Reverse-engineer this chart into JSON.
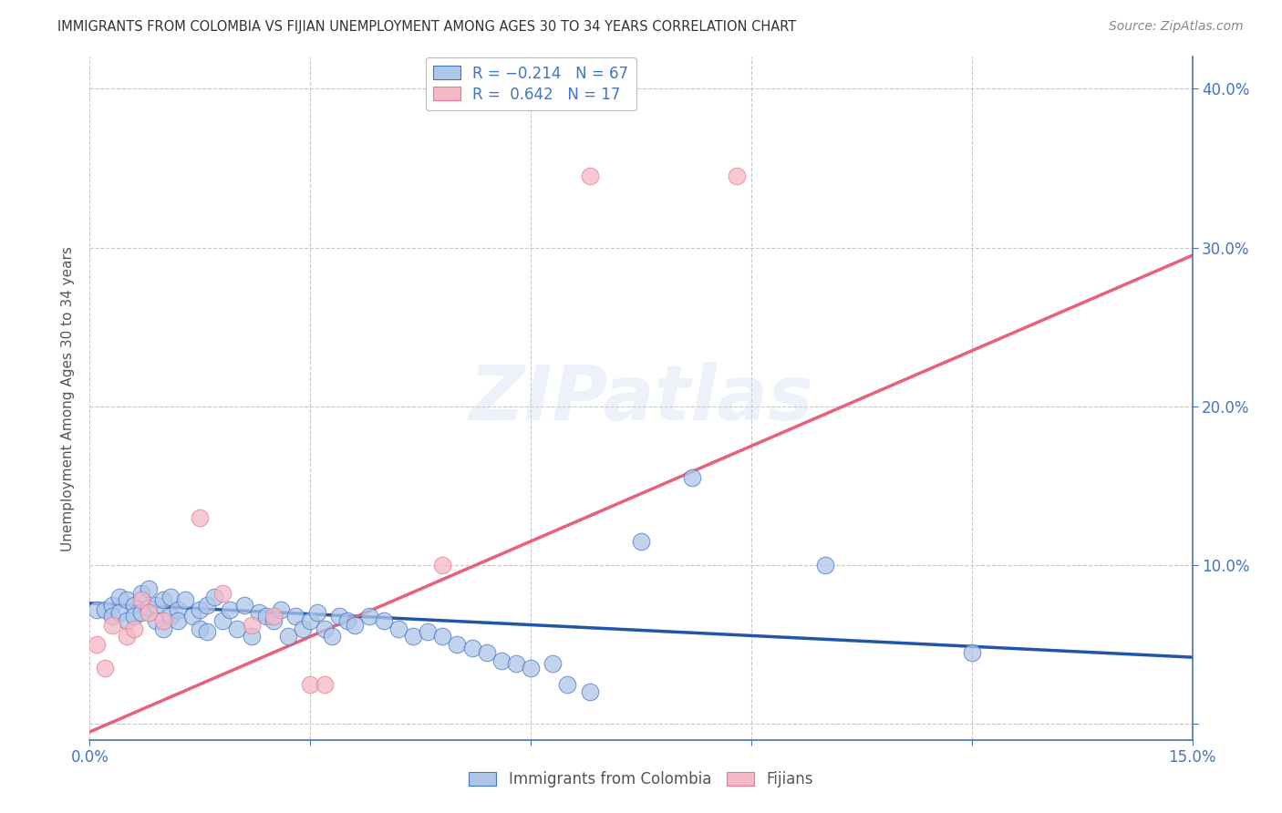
{
  "title": "IMMIGRANTS FROM COLOMBIA VS FIJIAN UNEMPLOYMENT AMONG AGES 30 TO 34 YEARS CORRELATION CHART",
  "source": "Source: ZipAtlas.com",
  "ylabel": "Unemployment Among Ages 30 to 34 years",
  "xlim": [
    0.0,
    0.15
  ],
  "ylim": [
    -0.01,
    0.42
  ],
  "xticks": [
    0.0,
    0.03,
    0.06,
    0.09,
    0.12,
    0.15
  ],
  "xtick_labels": [
    "0.0%",
    "",
    "",
    "",
    "",
    "15.0%"
  ],
  "yticks": [
    0.0,
    0.1,
    0.2,
    0.3,
    0.4
  ],
  "ytick_labels_right": [
    "",
    "10.0%",
    "20.0%",
    "30.0%",
    "40.0%"
  ],
  "background_color": "#ffffff",
  "grid_color": "#c8c8c8",
  "title_color": "#333333",
  "axis_color": "#4472c4",
  "watermark": "ZIPatlas",
  "colombia_color": "#aec6e8",
  "fijian_color": "#f4b8c8",
  "colombia_edge_color": "#4472c4",
  "fijian_edge_color": "#e8788a",
  "colombia_line_color": "#2255aa",
  "fijian_line_color": "#e8607a",
  "colombia_scatter": [
    [
      0.001,
      0.072
    ],
    [
      0.002,
      0.072
    ],
    [
      0.003,
      0.075
    ],
    [
      0.003,
      0.068
    ],
    [
      0.004,
      0.08
    ],
    [
      0.004,
      0.07
    ],
    [
      0.005,
      0.078
    ],
    [
      0.005,
      0.065
    ],
    [
      0.006,
      0.075
    ],
    [
      0.006,
      0.068
    ],
    [
      0.007,
      0.082
    ],
    [
      0.007,
      0.07
    ],
    [
      0.008,
      0.085
    ],
    [
      0.008,
      0.073
    ],
    [
      0.009,
      0.075
    ],
    [
      0.009,
      0.065
    ],
    [
      0.01,
      0.078
    ],
    [
      0.01,
      0.06
    ],
    [
      0.011,
      0.08
    ],
    [
      0.011,
      0.068
    ],
    [
      0.012,
      0.072
    ],
    [
      0.012,
      0.065
    ],
    [
      0.013,
      0.078
    ],
    [
      0.014,
      0.068
    ],
    [
      0.015,
      0.072
    ],
    [
      0.015,
      0.06
    ],
    [
      0.016,
      0.075
    ],
    [
      0.016,
      0.058
    ],
    [
      0.017,
      0.08
    ],
    [
      0.018,
      0.065
    ],
    [
      0.019,
      0.072
    ],
    [
      0.02,
      0.06
    ],
    [
      0.021,
      0.075
    ],
    [
      0.022,
      0.055
    ],
    [
      0.023,
      0.07
    ],
    [
      0.024,
      0.068
    ],
    [
      0.025,
      0.065
    ],
    [
      0.026,
      0.072
    ],
    [
      0.027,
      0.055
    ],
    [
      0.028,
      0.068
    ],
    [
      0.029,
      0.06
    ],
    [
      0.03,
      0.065
    ],
    [
      0.031,
      0.07
    ],
    [
      0.032,
      0.06
    ],
    [
      0.033,
      0.055
    ],
    [
      0.034,
      0.068
    ],
    [
      0.035,
      0.065
    ],
    [
      0.036,
      0.062
    ],
    [
      0.038,
      0.068
    ],
    [
      0.04,
      0.065
    ],
    [
      0.042,
      0.06
    ],
    [
      0.044,
      0.055
    ],
    [
      0.046,
      0.058
    ],
    [
      0.048,
      0.055
    ],
    [
      0.05,
      0.05
    ],
    [
      0.052,
      0.048
    ],
    [
      0.054,
      0.045
    ],
    [
      0.056,
      0.04
    ],
    [
      0.058,
      0.038
    ],
    [
      0.06,
      0.035
    ],
    [
      0.063,
      0.038
    ],
    [
      0.065,
      0.025
    ],
    [
      0.068,
      0.02
    ],
    [
      0.075,
      0.115
    ],
    [
      0.082,
      0.155
    ],
    [
      0.1,
      0.1
    ],
    [
      0.12,
      0.045
    ]
  ],
  "fijian_scatter": [
    [
      0.001,
      0.05
    ],
    [
      0.002,
      0.035
    ],
    [
      0.003,
      0.062
    ],
    [
      0.005,
      0.055
    ],
    [
      0.006,
      0.06
    ],
    [
      0.007,
      0.078
    ],
    [
      0.008,
      0.07
    ],
    [
      0.01,
      0.065
    ],
    [
      0.015,
      0.13
    ],
    [
      0.018,
      0.082
    ],
    [
      0.022,
      0.062
    ],
    [
      0.025,
      0.068
    ],
    [
      0.03,
      0.025
    ],
    [
      0.032,
      0.025
    ],
    [
      0.048,
      0.1
    ],
    [
      0.068,
      0.345
    ],
    [
      0.088,
      0.345
    ]
  ],
  "colombia_trendline": [
    [
      0.0,
      0.076
    ],
    [
      0.15,
      0.042
    ]
  ],
  "fijian_trendline": [
    [
      0.0,
      -0.005
    ],
    [
      0.15,
      0.295
    ]
  ]
}
